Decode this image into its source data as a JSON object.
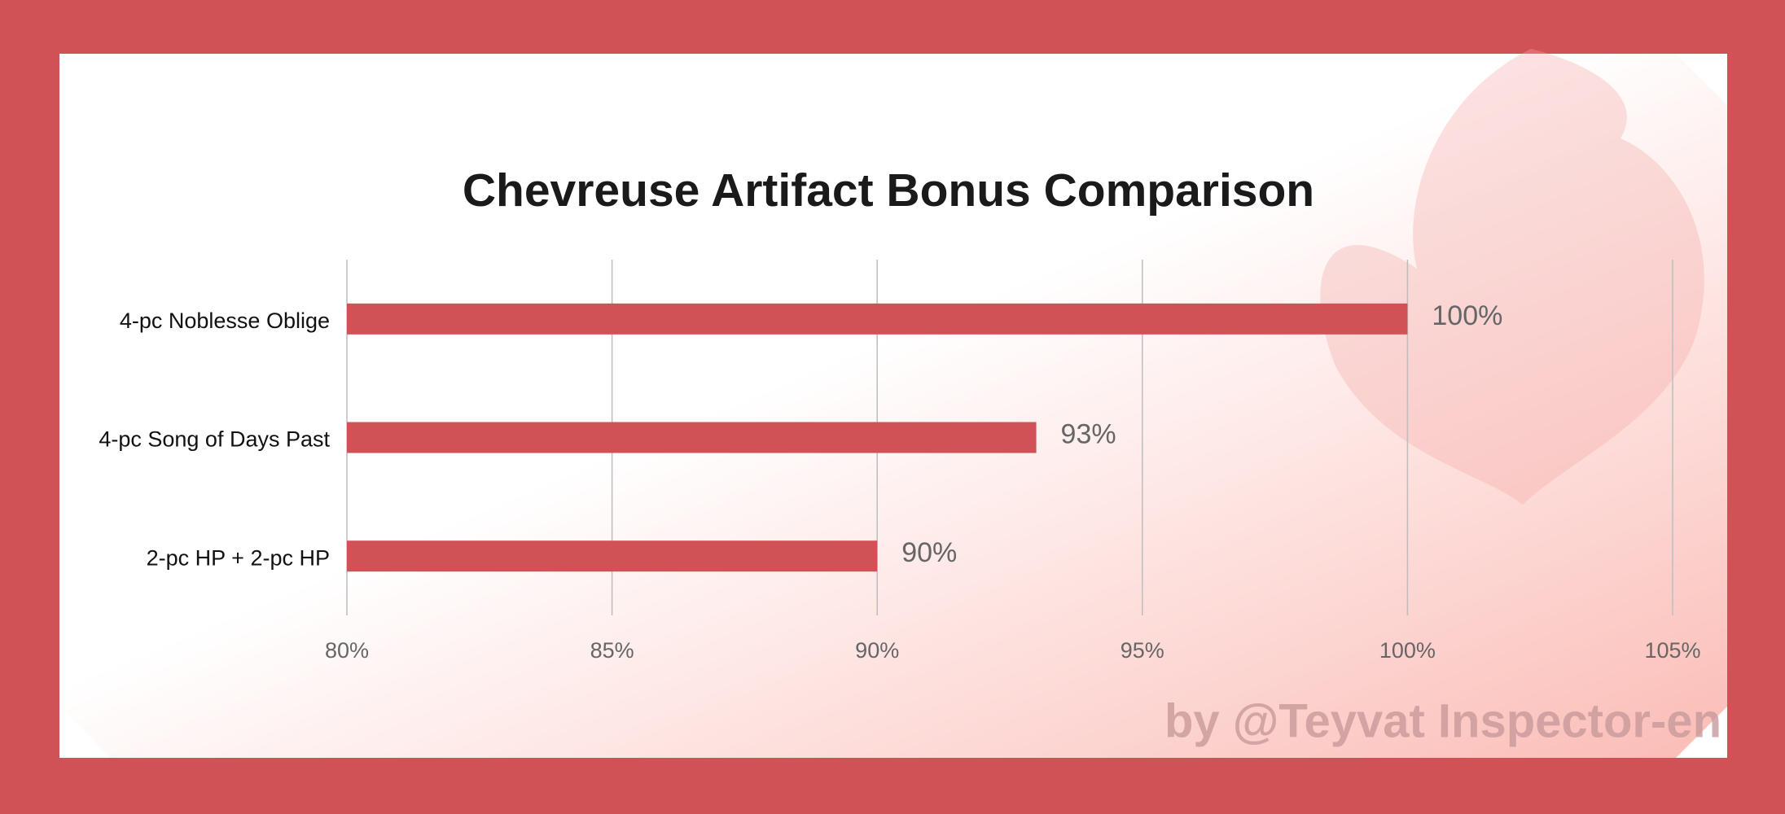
{
  "chart_data": {
    "type": "bar",
    "orientation": "horizontal",
    "title": "Chevreuse Artifact Bonus Comparison",
    "categories": [
      "4-pc Noblesse Oblige",
      "4-pc Song of Days Past",
      "2-pc HP + 2-pc HP"
    ],
    "values": [
      100,
      93,
      90
    ],
    "value_labels": [
      "100%",
      "93%",
      "90%"
    ],
    "color": "#d05256",
    "xlim": [
      80,
      105
    ],
    "xticks": [
      {
        "value": 80,
        "label": "80%"
      },
      {
        "value": 85,
        "label": "85%"
      },
      {
        "value": 90,
        "label": "90%"
      },
      {
        "value": 95,
        "label": "95%"
      },
      {
        "value": 100,
        "label": "100%"
      },
      {
        "value": 105,
        "label": "105%"
      }
    ],
    "grid": true,
    "watermark": "by @Teyvat Inspector-en"
  }
}
